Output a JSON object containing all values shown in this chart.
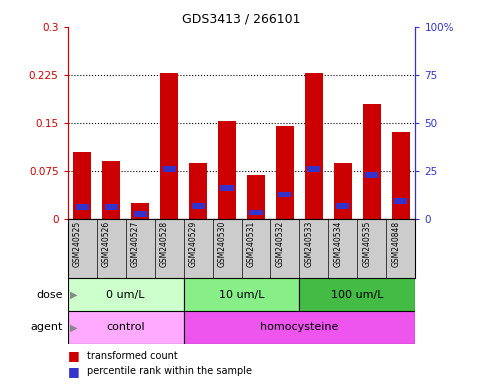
{
  "title": "GDS3413 / 266101",
  "samples": [
    "GSM240525",
    "GSM240526",
    "GSM240527",
    "GSM240528",
    "GSM240529",
    "GSM240530",
    "GSM240531",
    "GSM240532",
    "GSM240533",
    "GSM240534",
    "GSM240535",
    "GSM240848"
  ],
  "red_values": [
    0.105,
    0.09,
    0.025,
    0.228,
    0.088,
    0.153,
    0.068,
    0.145,
    0.228,
    0.088,
    0.18,
    0.135
  ],
  "blue_values": [
    0.018,
    0.018,
    0.008,
    0.078,
    0.02,
    0.048,
    0.01,
    0.038,
    0.078,
    0.02,
    0.068,
    0.028
  ],
  "ylim_left": [
    0,
    0.3
  ],
  "ylim_right": [
    0,
    100
  ],
  "yticks_left": [
    0,
    0.075,
    0.15,
    0.225,
    0.3
  ],
  "yticks_right": [
    0,
    25,
    50,
    75,
    100
  ],
  "ytick_labels_left": [
    "0",
    "0.075",
    "0.15",
    "0.225",
    "0.3"
  ],
  "ytick_labels_right": [
    "0",
    "25",
    "50",
    "75",
    "100%"
  ],
  "hlines": [
    0.075,
    0.15,
    0.225
  ],
  "bar_color": "#cc0000",
  "blue_color": "#3333cc",
  "tick_area_color": "#cccccc",
  "dose_groups": [
    {
      "label": "0 um/L",
      "start": 0,
      "end": 4
    },
    {
      "label": "10 um/L",
      "start": 4,
      "end": 8
    },
    {
      "label": "100 um/L",
      "start": 8,
      "end": 12
    }
  ],
  "agent_groups": [
    {
      "label": "control",
      "start": 0,
      "end": 4
    },
    {
      "label": "homocysteine",
      "start": 4,
      "end": 12
    }
  ],
  "dose_colors": [
    "#ccffcc",
    "#88ee88",
    "#44bb44"
  ],
  "agent_colors": [
    "#ffaaff",
    "#ee55ee"
  ],
  "left_axis_color": "#cc0000",
  "right_axis_color": "#3333cc",
  "legend_red_label": "transformed count",
  "legend_blue_label": "percentile rank within the sample"
}
